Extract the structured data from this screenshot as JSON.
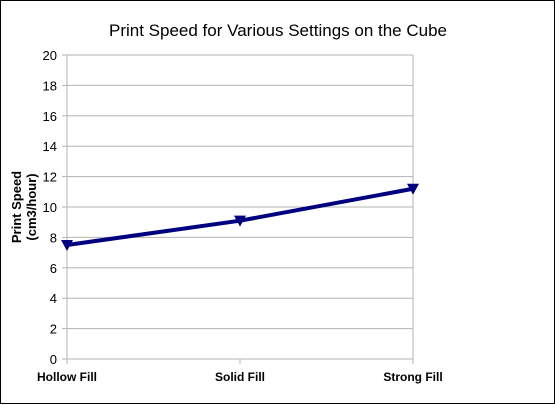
{
  "chart_data": {
    "type": "line",
    "title": "Print Speed for Various Settings on the Cube",
    "ylabel_line1": "Print Speed",
    "ylabel_line2": "(cm3/hour)",
    "xlabel": "",
    "categories": [
      "Hollow Fill",
      "Solid Fill",
      "Strong Fill"
    ],
    "series": [
      {
        "values": [
          7.5,
          9.1,
          11.2
        ],
        "color": "#000080",
        "marker": "triangle-down"
      }
    ],
    "ylim": [
      0,
      20
    ],
    "yticks": [
      0,
      2,
      4,
      6,
      8,
      10,
      12,
      14,
      16,
      18,
      20
    ],
    "grid": true,
    "legend": "none",
    "colors": {
      "grid": "#b3b3b3",
      "axis": "#b3b3b3",
      "frame": "#000000"
    }
  }
}
